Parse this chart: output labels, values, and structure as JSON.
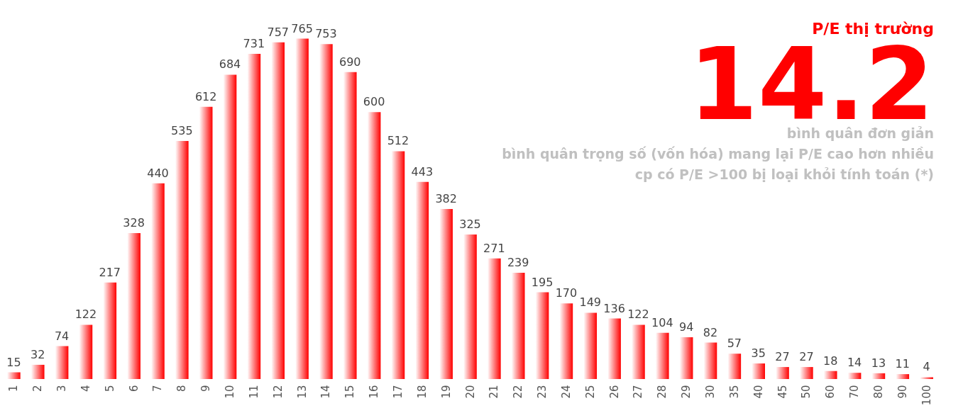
{
  "chart_data": {
    "type": "bar",
    "title": "P/E thị trường",
    "categories": [
      "1",
      "2",
      "3",
      "4",
      "5",
      "6",
      "7",
      "8",
      "9",
      "10",
      "11",
      "12",
      "13",
      "14",
      "15",
      "16",
      "17",
      "18",
      "19",
      "20",
      "21",
      "22",
      "23",
      "24",
      "25",
      "26",
      "27",
      "28",
      "29",
      "30",
      "35",
      "40",
      "45",
      "50",
      "60",
      "70",
      "80",
      "90",
      "100"
    ],
    "values": [
      15,
      32,
      74,
      122,
      217,
      328,
      440,
      535,
      612,
      684,
      731,
      757,
      765,
      753,
      690,
      600,
      512,
      443,
      382,
      325,
      271,
      239,
      195,
      170,
      149,
      136,
      122,
      104,
      94,
      82,
      57,
      35,
      27,
      27,
      18,
      14,
      13,
      11,
      4
    ],
    "color": "#ff0000",
    "data_labels": true,
    "tick_labels": "x",
    "annotations": [
      "14.2",
      "bình quân đơn giản",
      "bình quân trọng số (vốn hóa) mang lại P/E cao hơn nhiều",
      "cp có P/E >100 bị loại khỏi tính toán (*)"
    ]
  }
}
